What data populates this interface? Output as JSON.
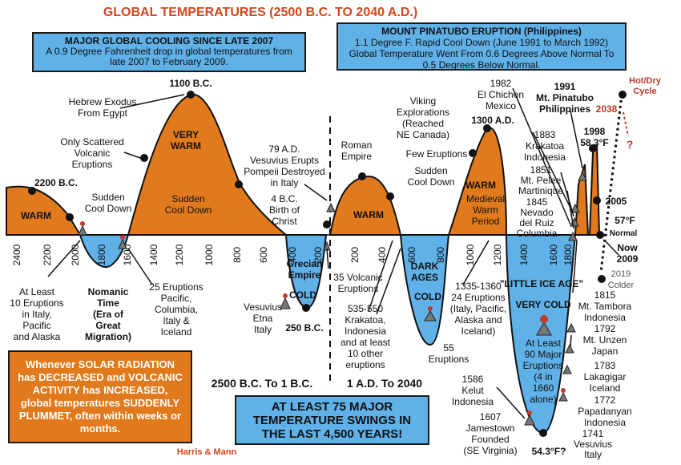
{
  "title": "GLOBAL TEMPERATURES (2500 B.C. TO 2040 A.D.)",
  "credit": "Harris & Mann",
  "colors": {
    "warm_fill": "#e07a1c",
    "cold_fill": "#5fb1e8",
    "title_red": "#d2461c",
    "hot_dry": "#c0392b",
    "box_blue": "#5fb1e8",
    "box_orange": "#e07a1c"
  },
  "boxes": {
    "cooling": {
      "head": "MAJOR GLOBAL COOLING SINCE LATE 2007",
      "body": "A 0.9 Degree Fahrenheit drop in global temperatures from late 2007 to February 2009."
    },
    "pinatubo": {
      "head": "MOUNT PINATUBO ERUPTION (Philippines)",
      "body": "1.1 Degree F. Rapid Cool Down (June 1991 to March 1992) Global Temperature Went From 0.6 Degrees Above Normal To 0.5 Degrees Below Normal."
    },
    "solar": {
      "text": "Whenever SOLAR RADIATION has DECREASED and VOLCANIC ACTIVITY has INCREASED, global temperatures SUDDENLY PLUMMET, often within weeks or months."
    },
    "swings": {
      "text": "AT LEAST 75 MAJOR TEMPERATURE SWINGS IN THE LAST 4,500 YEARS!"
    }
  },
  "chart_data": {
    "type": "area",
    "title": "GLOBAL TEMPERATURES (2500 B.C. TO 2040 A.D.)",
    "x_bc_ticks": [
      "2400",
      "2200",
      "2000",
      "1800",
      "1600",
      "1400",
      "1200",
      "1000",
      "800",
      "600",
      "400",
      "200"
    ],
    "x_ad_ticks": [
      "200",
      "400",
      "600",
      "800",
      "1000",
      "1200",
      "1400",
      "1600",
      "1800"
    ],
    "normal_label": "Normal",
    "eras": [
      "2500 B.C. To 1 B.C.",
      "1 A.D. To 2040"
    ],
    "segments": [
      {
        "kind": "warm",
        "label": "WARM"
      },
      {
        "kind": "cold",
        "label": "Nomanic Time (Era of Great Migration)"
      },
      {
        "kind": "warm",
        "label": "VERY WARM"
      },
      {
        "kind": "cold",
        "label": "Grecian Empire COLD"
      },
      {
        "kind": "warm",
        "label": "WARM"
      },
      {
        "kind": "cold",
        "label": "DARK AGES COLD"
      },
      {
        "kind": "warm",
        "label": "Medieval Warm Period"
      },
      {
        "kind": "cold",
        "label": "\"LITTLE ICE AGE\" VERY COLD"
      },
      {
        "kind": "warm",
        "label": "1998 58.3°F"
      }
    ],
    "key_values": {
      "peak_1998": "58.3°F",
      "normal": "57°F",
      "min_little_ice_age": "54.3°F?"
    }
  },
  "annotations": {
    "bc2200": "2200 B.C.",
    "warm_left": "WARM",
    "sudden1": "Sudden Cool Down",
    "bc1100": "1100 B.C.",
    "hebrew": "Hebrew Exodus From Egypt",
    "scattered": "Only Scattered Volcanic Eruptions",
    "verywarm": "VERY WARM",
    "sudden2": "Sudden Cool Down",
    "ad79": "79 A.D. Vesuvius Erupts Pompeii Destroyed in Italy",
    "bc4": "4 B.C. Birth of Christ",
    "roman": "Roman Empire",
    "warm_mid": "WARM",
    "viking": "Viking Explorations (Reached NE Canada)",
    "few": "Few Eruptions",
    "sudden3": "Sudden Cool Down",
    "ad1300": "1300 A.D.",
    "medieval_warm": "WARM",
    "medieval": "Medieval Warm Period",
    "elchichon": "1982 El Chichon Mexico",
    "pinatubo1991": "1991 Mt. Pinatubo Philippines",
    "krakatoa1883": "1883 Krakatoa Indonesia",
    "pelee": "1851 Mt. Pelee Martinique",
    "nevado": "1845 Nevado del Ruiz Columbia",
    "y1998": "1998 58.3°F",
    "y2005": "2005",
    "f57": "57°F",
    "normal": "Normal",
    "now": "Now 2009",
    "y2019": "2019 Colder",
    "hotdry": "Hot/Dry Cycle",
    "y2038": "2038",
    "qmark": "?",
    "tambora": "1815 Mt. Tambora Indonesia",
    "unzen": "1792 Mt. Unzen Japan",
    "laki": "1783 Lakagigar Iceland",
    "papa": "1772 Papadanyan Indonesia",
    "vesuvius1741": "1741 Vesuvius Italy",
    "lia": "\"LITTLE ICE AGE\"",
    "verycold": "VERY COLD",
    "ninety": "At Least 90 Major Eruptions (4 in 1660 alone)",
    "f543": "54.3°F?",
    "jamestown": "1607 Jamestown Founded (SE Virginia)",
    "kelut": "1586 Kelut Indonesia",
    "e1335": "1335-1360 24 Eruptions (Italy, Pacific, Alaska and Iceland)",
    "e55": "55 Eruptions",
    "darkcold": "COLD",
    "dark": "DARK AGES",
    "e535": "535-550 Krakatoa, Indonesia and at least 10 other eruptions",
    "e35": "35 Volcanic Eruptions",
    "grecian": "Grecian Empire",
    "cold_gr": "COLD",
    "vesuvius_etna": "Vesuvius Etna Italy",
    "bc250": "250 B.C.",
    "e25": "25 Eruptions Pacific, Columbia, Italy & Iceland",
    "nomanic": "Nomanic Time (Era of Great Migration)",
    "tenerupt": "At Least 10 Eruptions in Italy, Pacific and Alaska"
  }
}
